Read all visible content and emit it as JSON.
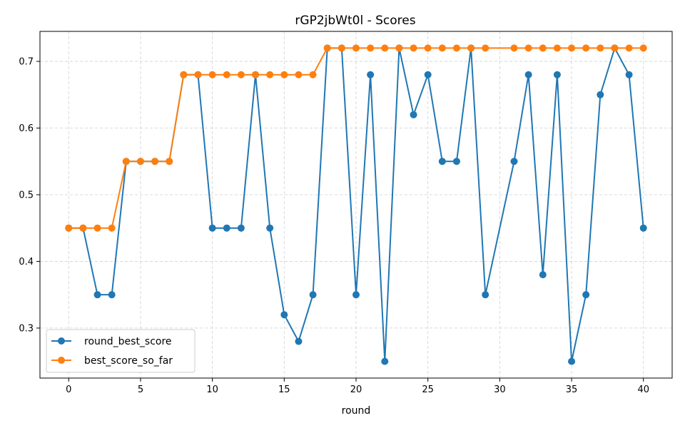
{
  "chart_data": {
    "type": "line",
    "title": "rGP2jbWt0l - Scores",
    "xlabel": "round",
    "ylabel": "",
    "xlim": [
      -2,
      42
    ],
    "ylim": [
      0.225,
      0.745
    ],
    "xticks": [
      0,
      5,
      10,
      15,
      20,
      25,
      30,
      35,
      40
    ],
    "yticks": [
      0.3,
      0.4,
      0.5,
      0.6,
      0.7
    ],
    "grid": true,
    "legend_position": "bottom-left",
    "series": [
      {
        "name": "round_best_score",
        "color": "#1f77b4",
        "x": [
          0,
          1,
          2,
          3,
          4,
          5,
          6,
          7,
          8,
          9,
          10,
          11,
          12,
          13,
          14,
          15,
          16,
          17,
          18,
          19,
          20,
          21,
          22,
          23,
          24,
          25,
          26,
          27,
          28,
          29,
          31,
          32,
          33,
          34,
          35,
          36,
          37,
          38,
          39,
          40
        ],
        "values": [
          0.45,
          0.45,
          0.35,
          0.35,
          0.55,
          0.55,
          0.55,
          0.55,
          0.68,
          0.68,
          0.45,
          0.45,
          0.45,
          0.68,
          0.45,
          0.32,
          0.28,
          0.35,
          0.72,
          0.72,
          0.35,
          0.68,
          0.25,
          0.72,
          0.62,
          0.68,
          0.55,
          0.55,
          0.72,
          0.35,
          0.55,
          0.68,
          0.38,
          0.68,
          0.25,
          0.35,
          0.65,
          0.72,
          0.68,
          0.45
        ]
      },
      {
        "name": "best_score_so_far",
        "color": "#ff7f0e",
        "x": [
          0,
          1,
          2,
          3,
          4,
          5,
          6,
          7,
          8,
          9,
          10,
          11,
          12,
          13,
          14,
          15,
          16,
          17,
          18,
          19,
          20,
          21,
          22,
          23,
          24,
          25,
          26,
          27,
          28,
          29,
          31,
          32,
          33,
          34,
          35,
          36,
          37,
          38,
          39,
          40
        ],
        "values": [
          0.45,
          0.45,
          0.45,
          0.45,
          0.55,
          0.55,
          0.55,
          0.55,
          0.68,
          0.68,
          0.68,
          0.68,
          0.68,
          0.68,
          0.68,
          0.68,
          0.68,
          0.68,
          0.72,
          0.72,
          0.72,
          0.72,
          0.72,
          0.72,
          0.72,
          0.72,
          0.72,
          0.72,
          0.72,
          0.72,
          0.72,
          0.72,
          0.72,
          0.72,
          0.72,
          0.72,
          0.72,
          0.72,
          0.72,
          0.72
        ]
      }
    ]
  }
}
